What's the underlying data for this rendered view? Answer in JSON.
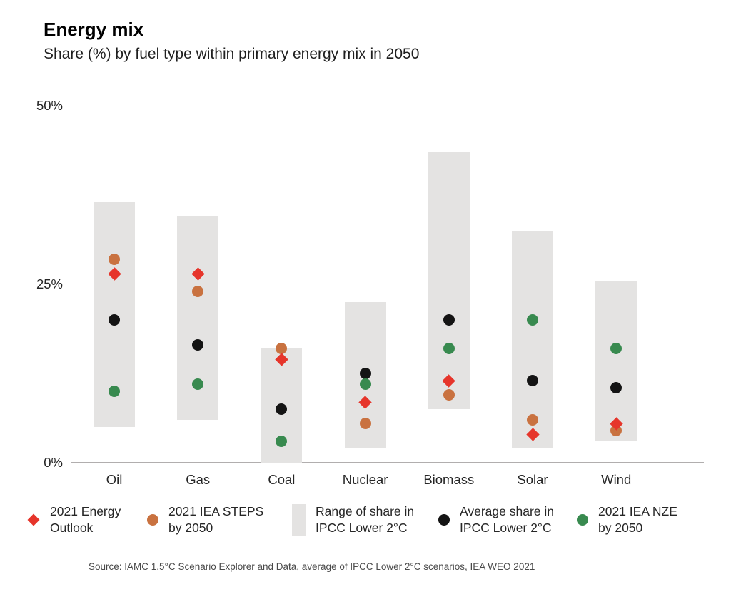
{
  "title": "Energy mix",
  "subtitle": "Share (%) by fuel type within primary energy mix in 2050",
  "source": "Source: IAMC 1.5°C Scenario Explorer and Data, average of IPCC Lower 2°C scenarios, IEA WEO 2021",
  "colors": {
    "outlook_red": "#e6352b",
    "steps_orange": "#c97240",
    "avg_black": "#141414",
    "nze_green": "#388a4f",
    "range_gray": "#e4e3e2",
    "axis_gray": "#b1aeae",
    "text_dark": "#262626"
  },
  "y_axis": {
    "ticks": [
      {
        "label": "50%",
        "value": 50
      },
      {
        "label": "25%",
        "value": 25
      },
      {
        "label": "0%",
        "value": 0
      }
    ]
  },
  "legend": [
    {
      "marker": "diamond",
      "color_key": "outlook_red",
      "lines": [
        "2021 Energy",
        "Outlook"
      ]
    },
    {
      "marker": "circle",
      "color_key": "steps_orange",
      "lines": [
        "2021 IEA STEPS",
        "by 2050"
      ]
    },
    {
      "marker": "bar",
      "color_key": "range_gray",
      "lines": [
        "Range of share in",
        "IPCC Lower 2°C"
      ]
    },
    {
      "marker": "circle",
      "color_key": "avg_black",
      "lines": [
        "Average share in",
        "IPCC Lower 2°C"
      ]
    },
    {
      "marker": "circle",
      "color_key": "nze_green",
      "lines": [
        "2021 IEA NZE",
        "by 2050"
      ]
    }
  ],
  "chart_data": {
    "type": "scatter",
    "title": "Energy mix",
    "subtitle": "Share (%) by fuel type within primary energy mix in 2050",
    "ylabel": "Share (%) by fuel type within primary energy mix in 2050",
    "ylim": [
      0,
      50
    ],
    "yticks": [
      0,
      25,
      50
    ],
    "grid": false,
    "legend_position": "bottom",
    "categories": [
      "Oil",
      "Gas",
      "Coal",
      "Nuclear",
      "Biomass",
      "Solar",
      "Wind"
    ],
    "range_series": {
      "name": "Range of share in IPCC Lower 2°C",
      "color_key": "range_gray",
      "low": [
        5,
        6,
        0,
        2,
        7.5,
        2,
        3
      ],
      "high": [
        36.5,
        34.5,
        16,
        22.5,
        43.5,
        32.5,
        25.5
      ]
    },
    "series": [
      {
        "name": "Average share in IPCC Lower 2°C",
        "marker": "circle",
        "color_key": "avg_black",
        "values": [
          20,
          16.5,
          7.5,
          12.5,
          20,
          11.5,
          10.5
        ]
      },
      {
        "name": "2021 IEA NZE by 2050",
        "marker": "circle",
        "color_key": "nze_green",
        "values": [
          10,
          11,
          3,
          11,
          16,
          20,
          16
        ]
      },
      {
        "name": "2021 IEA STEPS by 2050",
        "marker": "circle",
        "color_key": "steps_orange",
        "values": [
          28.5,
          24,
          16,
          5.5,
          9.5,
          6,
          4.5
        ]
      },
      {
        "name": "2021 Energy Outlook",
        "marker": "diamond",
        "color_key": "outlook_red",
        "values": [
          26.5,
          26.5,
          14.5,
          8.5,
          11.5,
          4,
          5.5
        ]
      }
    ]
  }
}
